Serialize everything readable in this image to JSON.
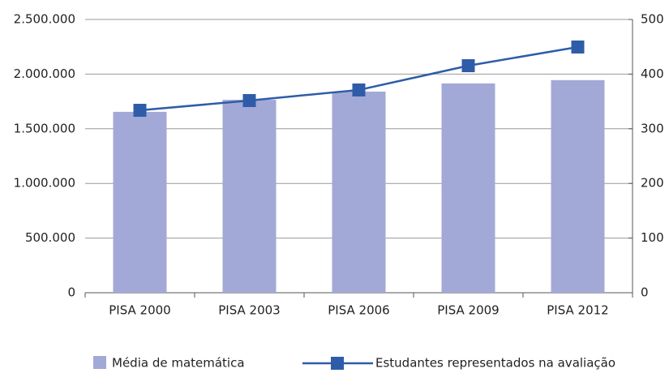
{
  "chart_data": {
    "type": "bar_line",
    "categories": [
      "PISA 2000",
      "PISA 2003",
      "PISA 2006",
      "PISA 2009",
      "PISA 2012"
    ],
    "series": [
      {
        "name": "Média de matemática",
        "type": "bar",
        "color": "#a3a9d6",
        "axis": "y2",
        "values": [
          331,
          353,
          368,
          383,
          389
        ]
      },
      {
        "name": "Estudantes representados na avaliação",
        "type": "line",
        "color": "#2e5ca8",
        "values": [
          1669000,
          1758000,
          1855000,
          2077000,
          2248000
        ]
      }
    ],
    "ylim": [
      0,
      2500000
    ],
    "yticks": [
      0,
      {
        "value": 500000,
        "label": "500.000"
      },
      {
        "value": 1000000,
        "label": "1.000.000"
      },
      {
        "value": 1500000,
        "label": "1.500.000"
      },
      {
        "value": 2000000,
        "label": "2.000.000"
      },
      {
        "value": 2500000,
        "label": "2.500.000"
      }
    ],
    "y2lim": [
      0,
      500
    ],
    "y2ticks": [
      0,
      100,
      200,
      300,
      400,
      500
    ],
    "grid": true,
    "legend": "bottom"
  }
}
